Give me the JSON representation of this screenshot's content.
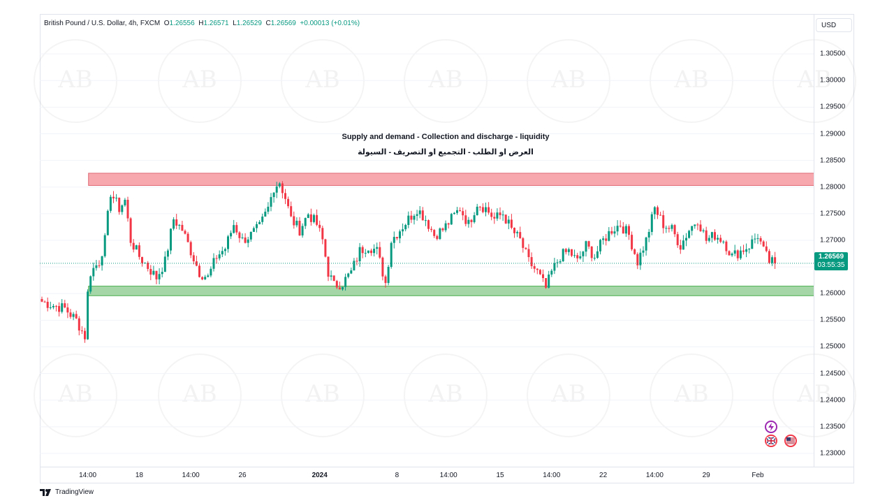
{
  "legend": {
    "symbol": "British Pound / U.S. Dollar, 4h, FXCM",
    "o_label": "O",
    "o": "1.26556",
    "h_label": "H",
    "h": "1.26571",
    "l_label": "L",
    "l": "1.26529",
    "c_label": "C",
    "c": "1.26569",
    "change": "+0.00013 (+0.01%)"
  },
  "currency_button": "USD",
  "last_price": {
    "price": "1.26569",
    "countdown": "03:55:35",
    "value": 1.26569
  },
  "annotation": {
    "title_en": "Supply and demand - Collection and discharge - liquidity",
    "title_ar": "العرض او الطلب - التجميع او التصريف - السيولة"
  },
  "footer": {
    "brand": "TradingView"
  },
  "colors": {
    "up": "#089981",
    "down": "#f23645",
    "supply_zone": "#f7a8ae",
    "demand_zone": "#a5d6a7"
  },
  "chart_data": {
    "type": "candlestick",
    "price_axis": {
      "ticks": [
        "1.30500",
        "1.30000",
        "1.29500",
        "1.29000",
        "1.28500",
        "1.28000",
        "1.27500",
        "1.27000",
        "1.26500",
        "1.26000",
        "1.25500",
        "1.25000",
        "1.24500",
        "1.24000",
        "1.23500",
        "1.23000"
      ],
      "range": [
        1.2275,
        1.3125
      ]
    },
    "time_axis": {
      "ticks": [
        {
          "label": "14:00",
          "bar": 16,
          "bold": false
        },
        {
          "label": "18",
          "bar": 34,
          "bold": false
        },
        {
          "label": "14:00",
          "bar": 52,
          "bold": false
        },
        {
          "label": "26",
          "bar": 70,
          "bold": false
        },
        {
          "label": "2024",
          "bar": 97,
          "bold": true
        },
        {
          "label": "8",
          "bar": 124,
          "bold": false
        },
        {
          "label": "14:00",
          "bar": 142,
          "bold": false
        },
        {
          "label": "15",
          "bar": 160,
          "bold": false
        },
        {
          "label": "14:00",
          "bar": 178,
          "bold": false
        },
        {
          "label": "22",
          "bar": 196,
          "bold": false
        },
        {
          "label": "14:00",
          "bar": 214,
          "bold": false
        },
        {
          "label": "29",
          "bar": 232,
          "bold": false
        },
        {
          "label": "Feb",
          "bar": 250,
          "bold": false
        }
      ]
    },
    "zones": [
      {
        "name": "supply",
        "from_bar": 17,
        "to_bar": 270,
        "top": 1.2826,
        "bottom": 1.2803
      },
      {
        "name": "demand",
        "from_bar": 17,
        "to_bar": 270,
        "top": 1.2614,
        "bottom": 1.2596
      }
    ],
    "anchors": [
      {
        "bar": 0,
        "p": 1.2585
      },
      {
        "bar": 4,
        "p": 1.2578
      },
      {
        "bar": 8,
        "p": 1.2572
      },
      {
        "bar": 12,
        "p": 1.255
      },
      {
        "bar": 15,
        "p": 1.252
      },
      {
        "bar": 16,
        "p": 1.26
      },
      {
        "bar": 17,
        "p": 1.264
      },
      {
        "bar": 20,
        "p": 1.266
      },
      {
        "bar": 22,
        "p": 1.27
      },
      {
        "bar": 24,
        "p": 1.279
      },
      {
        "bar": 27,
        "p": 1.276
      },
      {
        "bar": 29,
        "p": 1.2775
      },
      {
        "bar": 31,
        "p": 1.27
      },
      {
        "bar": 34,
        "p": 1.267
      },
      {
        "bar": 37,
        "p": 1.265
      },
      {
        "bar": 40,
        "p": 1.263
      },
      {
        "bar": 43,
        "p": 1.266
      },
      {
        "bar": 46,
        "p": 1.274
      },
      {
        "bar": 49,
        "p": 1.272
      },
      {
        "bar": 52,
        "p": 1.268
      },
      {
        "bar": 55,
        "p": 1.264
      },
      {
        "bar": 58,
        "p": 1.263
      },
      {
        "bar": 61,
        "p": 1.267
      },
      {
        "bar": 64,
        "p": 1.2685
      },
      {
        "bar": 67,
        "p": 1.273
      },
      {
        "bar": 70,
        "p": 1.27
      },
      {
        "bar": 73,
        "p": 1.271
      },
      {
        "bar": 76,
        "p": 1.2725
      },
      {
        "bar": 79,
        "p": 1.276
      },
      {
        "bar": 81,
        "p": 1.28
      },
      {
        "bar": 83,
        "p": 1.281
      },
      {
        "bar": 85,
        "p": 1.278
      },
      {
        "bar": 87,
        "p": 1.274
      },
      {
        "bar": 90,
        "p": 1.272
      },
      {
        "bar": 93,
        "p": 1.275
      },
      {
        "bar": 96,
        "p": 1.273
      },
      {
        "bar": 98,
        "p": 1.27
      },
      {
        "bar": 100,
        "p": 1.264
      },
      {
        "bar": 102,
        "p": 1.2615
      },
      {
        "bar": 105,
        "p": 1.262
      },
      {
        "bar": 108,
        "p": 1.264
      },
      {
        "bar": 111,
        "p": 1.268
      },
      {
        "bar": 114,
        "p": 1.269
      },
      {
        "bar": 117,
        "p": 1.268
      },
      {
        "bar": 120,
        "p": 1.262
      },
      {
        "bar": 122,
        "p": 1.27
      },
      {
        "bar": 125,
        "p": 1.272
      },
      {
        "bar": 128,
        "p": 1.274
      },
      {
        "bar": 131,
        "p": 1.276
      },
      {
        "bar": 134,
        "p": 1.274
      },
      {
        "bar": 137,
        "p": 1.271
      },
      {
        "bar": 140,
        "p": 1.272
      },
      {
        "bar": 143,
        "p": 1.274
      },
      {
        "bar": 146,
        "p": 1.276
      },
      {
        "bar": 149,
        "p": 1.273
      },
      {
        "bar": 152,
        "p": 1.277
      },
      {
        "bar": 155,
        "p": 1.276
      },
      {
        "bar": 158,
        "p": 1.274
      },
      {
        "bar": 161,
        "p": 1.275
      },
      {
        "bar": 164,
        "p": 1.272
      },
      {
        "bar": 167,
        "p": 1.27
      },
      {
        "bar": 170,
        "p": 1.266
      },
      {
        "bar": 173,
        "p": 1.264
      },
      {
        "bar": 176,
        "p": 1.261
      },
      {
        "bar": 178,
        "p": 1.264
      },
      {
        "bar": 181,
        "p": 1.267
      },
      {
        "bar": 184,
        "p": 1.268
      },
      {
        "bar": 187,
        "p": 1.266
      },
      {
        "bar": 190,
        "p": 1.269
      },
      {
        "bar": 193,
        "p": 1.267
      },
      {
        "bar": 196,
        "p": 1.27
      },
      {
        "bar": 199,
        "p": 1.272
      },
      {
        "bar": 202,
        "p": 1.273
      },
      {
        "bar": 205,
        "p": 1.271
      },
      {
        "bar": 208,
        "p": 1.266
      },
      {
        "bar": 211,
        "p": 1.27
      },
      {
        "bar": 214,
        "p": 1.276
      },
      {
        "bar": 217,
        "p": 1.273
      },
      {
        "bar": 220,
        "p": 1.272
      },
      {
        "bar": 223,
        "p": 1.269
      },
      {
        "bar": 226,
        "p": 1.272
      },
      {
        "bar": 229,
        "p": 1.274
      },
      {
        "bar": 232,
        "p": 1.27
      },
      {
        "bar": 235,
        "p": 1.271
      },
      {
        "bar": 238,
        "p": 1.27
      },
      {
        "bar": 241,
        "p": 1.267
      },
      {
        "bar": 244,
        "p": 1.268
      },
      {
        "bar": 247,
        "p": 1.269
      },
      {
        "bar": 250,
        "p": 1.271
      },
      {
        "bar": 252,
        "p": 1.268
      },
      {
        "bar": 254,
        "p": 1.266
      },
      {
        "bar": 256,
        "p": 1.26569
      }
    ],
    "n_bars": 257,
    "bar_spacing": 4.1,
    "first_bar_x": 3
  }
}
